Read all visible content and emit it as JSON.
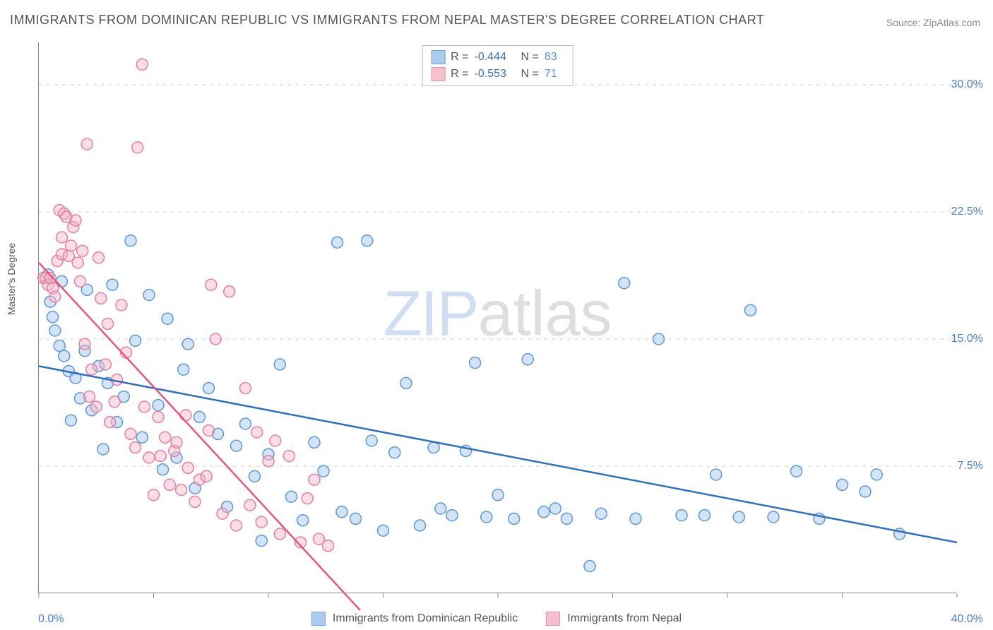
{
  "title": "IMMIGRANTS FROM DOMINICAN REPUBLIC VS IMMIGRANTS FROM NEPAL MASTER'S DEGREE CORRELATION CHART",
  "source_label": "Source: ",
  "source_value": "ZipAtlas.com",
  "y_axis_label": "Master's Degree",
  "watermark_a": "ZIP",
  "watermark_b": "atlas",
  "chart": {
    "type": "scatter",
    "xlim": [
      0,
      40
    ],
    "ylim": [
      0,
      32.5
    ],
    "x_min_label": "0.0%",
    "x_max_label": "40.0%",
    "y_ticks": [
      7.5,
      15.0,
      22.5,
      30.0
    ],
    "y_tick_labels": [
      "7.5%",
      "15.0%",
      "22.5%",
      "30.0%"
    ],
    "x_tick_positions": [
      0,
      5,
      10,
      15,
      20,
      25,
      30,
      35,
      40
    ],
    "grid_color": "#d0d0d0",
    "background_color": "#ffffff",
    "marker_radius": 8,
    "marker_stroke_width": 1.5,
    "trend_line_width": 2.5,
    "series": [
      {
        "name": "Immigrants from Dominican Republic",
        "fill_color": "#9ec4eb",
        "stroke_color": "#5c98d6",
        "fill_opacity": 0.45,
        "line_color": "#2f6fc0",
        "R": "-0.444",
        "N": "83",
        "trend": {
          "x1": 0.0,
          "y1": 13.4,
          "x2": 40.0,
          "y2": 3.0
        },
        "points": [
          [
            0.4,
            18.8
          ],
          [
            0.5,
            17.2
          ],
          [
            0.6,
            16.3
          ],
          [
            0.7,
            15.5
          ],
          [
            0.9,
            14.6
          ],
          [
            1.0,
            18.4
          ],
          [
            1.1,
            14.0
          ],
          [
            1.3,
            13.1
          ],
          [
            1.4,
            10.2
          ],
          [
            1.6,
            12.7
          ],
          [
            1.8,
            11.5
          ],
          [
            2.0,
            14.3
          ],
          [
            2.1,
            17.9
          ],
          [
            2.3,
            10.8
          ],
          [
            2.6,
            13.4
          ],
          [
            2.8,
            8.5
          ],
          [
            3.0,
            12.4
          ],
          [
            3.2,
            18.2
          ],
          [
            3.4,
            10.1
          ],
          [
            3.7,
            11.6
          ],
          [
            4.0,
            20.8
          ],
          [
            4.2,
            14.9
          ],
          [
            4.5,
            9.2
          ],
          [
            4.8,
            17.6
          ],
          [
            5.2,
            11.1
          ],
          [
            5.4,
            7.3
          ],
          [
            5.6,
            16.2
          ],
          [
            6.0,
            8.0
          ],
          [
            6.3,
            13.2
          ],
          [
            6.5,
            14.7
          ],
          [
            6.8,
            6.2
          ],
          [
            7.0,
            10.4
          ],
          [
            7.4,
            12.1
          ],
          [
            7.8,
            9.4
          ],
          [
            8.2,
            5.1
          ],
          [
            8.6,
            8.7
          ],
          [
            9.0,
            10.0
          ],
          [
            9.4,
            6.9
          ],
          [
            9.7,
            3.1
          ],
          [
            10.0,
            8.2
          ],
          [
            10.5,
            13.5
          ],
          [
            11.0,
            5.7
          ],
          [
            11.5,
            4.3
          ],
          [
            12.0,
            8.9
          ],
          [
            12.4,
            7.2
          ],
          [
            13.0,
            20.7
          ],
          [
            13.2,
            4.8
          ],
          [
            13.8,
            4.4
          ],
          [
            14.3,
            20.8
          ],
          [
            14.5,
            9.0
          ],
          [
            15.0,
            3.7
          ],
          [
            15.5,
            8.3
          ],
          [
            16.0,
            12.4
          ],
          [
            16.6,
            4.0
          ],
          [
            17.2,
            8.6
          ],
          [
            17.5,
            5.0
          ],
          [
            18.0,
            4.6
          ],
          [
            18.6,
            8.4
          ],
          [
            19.0,
            13.6
          ],
          [
            19.5,
            4.5
          ],
          [
            20.0,
            5.8
          ],
          [
            20.7,
            4.4
          ],
          [
            21.3,
            13.8
          ],
          [
            22.0,
            4.8
          ],
          [
            22.5,
            5.0
          ],
          [
            23.0,
            4.4
          ],
          [
            24.0,
            1.6
          ],
          [
            24.5,
            4.7
          ],
          [
            25.5,
            18.3
          ],
          [
            26.0,
            4.4
          ],
          [
            27.0,
            15.0
          ],
          [
            28.0,
            4.6
          ],
          [
            29.0,
            4.6
          ],
          [
            29.5,
            7.0
          ],
          [
            30.5,
            4.5
          ],
          [
            31.0,
            16.7
          ],
          [
            32.0,
            4.5
          ],
          [
            33.0,
            7.2
          ],
          [
            34.0,
            4.4
          ],
          [
            35.0,
            6.4
          ],
          [
            36.0,
            6.0
          ],
          [
            36.5,
            7.0
          ],
          [
            37.5,
            3.5
          ]
        ]
      },
      {
        "name": "Immigrants from Nepal",
        "fill_color": "#f4b4c6",
        "stroke_color": "#e57f9f",
        "fill_opacity": 0.45,
        "line_color": "#e6567f",
        "R": "-0.553",
        "N": "71",
        "trend": {
          "x1": 0.0,
          "y1": 19.5,
          "x2": 14.0,
          "y2": -1.0
        },
        "points": [
          [
            0.2,
            18.6
          ],
          [
            0.3,
            18.6
          ],
          [
            0.4,
            18.2
          ],
          [
            0.5,
            18.6
          ],
          [
            0.6,
            18.0
          ],
          [
            0.7,
            17.5
          ],
          [
            0.8,
            19.6
          ],
          [
            0.9,
            22.6
          ],
          [
            1.0,
            21.0
          ],
          [
            1.0,
            20.0
          ],
          [
            1.1,
            22.4
          ],
          [
            1.2,
            22.2
          ],
          [
            1.3,
            19.9
          ],
          [
            1.4,
            20.5
          ],
          [
            1.5,
            21.6
          ],
          [
            1.6,
            22.0
          ],
          [
            1.7,
            19.5
          ],
          [
            1.8,
            18.4
          ],
          [
            1.9,
            20.2
          ],
          [
            2.0,
            14.7
          ],
          [
            2.1,
            26.5
          ],
          [
            2.2,
            11.6
          ],
          [
            2.3,
            13.2
          ],
          [
            2.5,
            11.0
          ],
          [
            2.6,
            19.8
          ],
          [
            2.7,
            17.4
          ],
          [
            2.9,
            13.5
          ],
          [
            3.0,
            15.9
          ],
          [
            3.1,
            10.1
          ],
          [
            3.3,
            11.3
          ],
          [
            3.4,
            12.6
          ],
          [
            3.6,
            17.0
          ],
          [
            3.8,
            14.2
          ],
          [
            4.0,
            9.4
          ],
          [
            4.2,
            8.6
          ],
          [
            4.3,
            26.3
          ],
          [
            4.5,
            31.2
          ],
          [
            4.6,
            11.0
          ],
          [
            4.8,
            8.0
          ],
          [
            5.0,
            5.8
          ],
          [
            5.2,
            10.4
          ],
          [
            5.3,
            8.1
          ],
          [
            5.5,
            9.2
          ],
          [
            5.7,
            6.4
          ],
          [
            5.9,
            8.4
          ],
          [
            6.0,
            8.9
          ],
          [
            6.2,
            6.1
          ],
          [
            6.4,
            10.5
          ],
          [
            6.5,
            7.4
          ],
          [
            6.8,
            5.4
          ],
          [
            7.0,
            6.7
          ],
          [
            7.3,
            6.9
          ],
          [
            7.4,
            9.6
          ],
          [
            7.5,
            18.2
          ],
          [
            7.7,
            15.0
          ],
          [
            8.0,
            4.7
          ],
          [
            8.3,
            17.8
          ],
          [
            8.6,
            4.0
          ],
          [
            9.0,
            12.1
          ],
          [
            9.2,
            5.2
          ],
          [
            9.5,
            9.5
          ],
          [
            9.7,
            4.2
          ],
          [
            10.0,
            7.8
          ],
          [
            10.3,
            9.0
          ],
          [
            10.5,
            3.5
          ],
          [
            10.9,
            8.1
          ],
          [
            11.4,
            3.0
          ],
          [
            11.7,
            5.6
          ],
          [
            12.0,
            6.7
          ],
          [
            12.2,
            3.2
          ],
          [
            12.6,
            2.8
          ]
        ]
      }
    ]
  },
  "stats_labels": {
    "R": "R =",
    "N": "N ="
  },
  "legend_bottom": {
    "series1": "Immigrants from Dominican Republic",
    "series2": "Immigrants from Nepal"
  }
}
